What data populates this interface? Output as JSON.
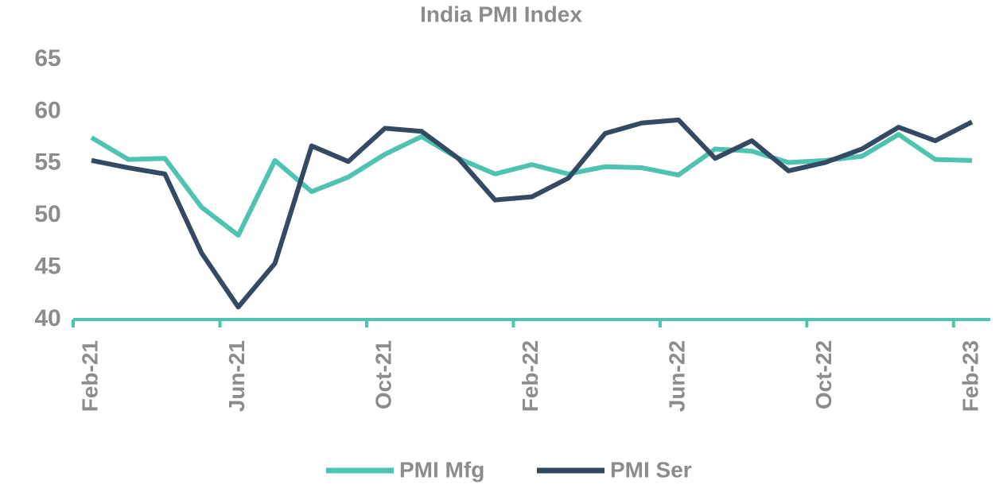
{
  "chart_data": {
    "type": "line",
    "title": "India PMI Index",
    "categories": [
      "Feb-21",
      null,
      null,
      null,
      "Jun-21",
      null,
      null,
      null,
      "Oct-21",
      null,
      null,
      null,
      "Feb-22",
      null,
      null,
      null,
      "Jun-22",
      null,
      null,
      null,
      "Oct-22",
      null,
      null,
      null,
      "Feb-23"
    ],
    "series": [
      {
        "name": "PMI Mfg",
        "color": "#4dc3b0",
        "values": [
          57.5,
          55.4,
          55.5,
          50.8,
          48.1,
          55.3,
          52.3,
          53.7,
          55.9,
          57.6,
          55.5,
          54.0,
          54.9,
          54.0,
          54.7,
          54.6,
          53.9,
          56.4,
          56.2,
          55.1,
          55.3,
          55.7,
          57.8,
          55.4,
          55.3
        ]
      },
      {
        "name": "PMI Ser",
        "color": "#344a63",
        "values": [
          55.3,
          54.6,
          54.0,
          46.4,
          41.2,
          45.4,
          56.7,
          55.2,
          58.4,
          58.1,
          55.5,
          51.5,
          51.8,
          53.6,
          57.9,
          58.9,
          59.2,
          55.5,
          57.2,
          54.3,
          55.1,
          56.4,
          58.5,
          57.2,
          59.0
        ]
      }
    ],
    "ylim": [
      40,
      65
    ],
    "yticks": [
      40,
      45,
      50,
      55,
      60,
      65
    ],
    "grid": false,
    "legend": "bottom"
  }
}
